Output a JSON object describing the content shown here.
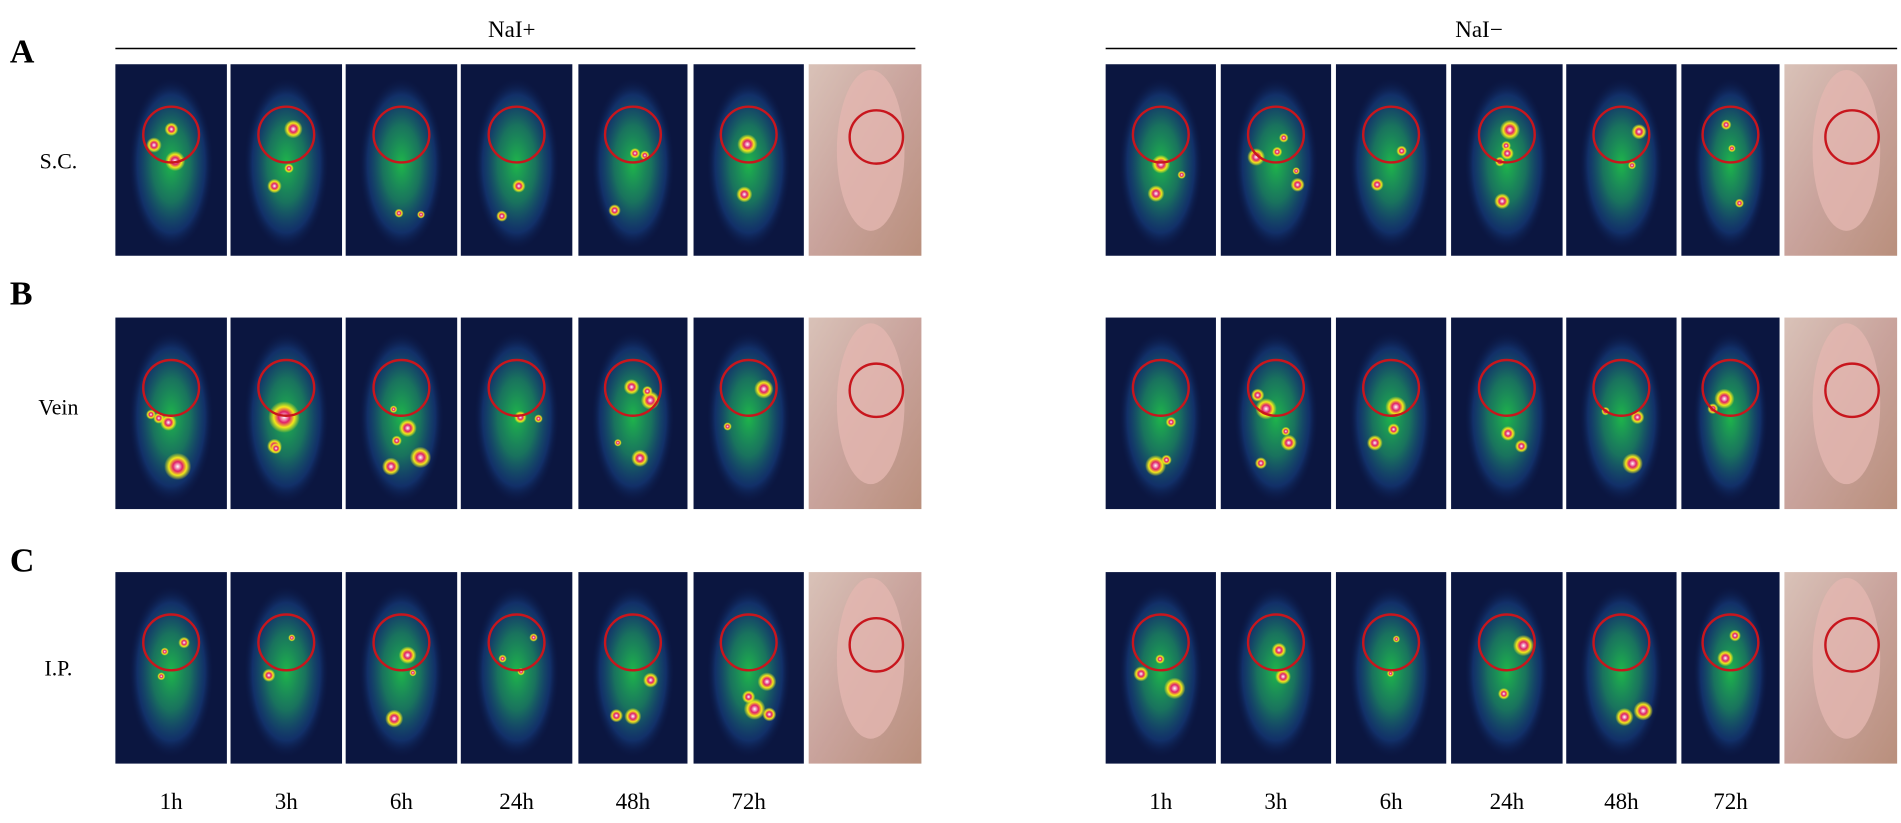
{
  "groups": [
    {
      "title": "NaI+",
      "time_labels": [
        "1h",
        "3h",
        "6h",
        "24h",
        "48h",
        "72h"
      ]
    },
    {
      "title": "NaI−",
      "time_labels": [
        "1h",
        "3h",
        "6h",
        "24h",
        "48h",
        "72h"
      ]
    }
  ],
  "rows": [
    {
      "letter": "A",
      "label": "S.C."
    },
    {
      "letter": "B",
      "label": "Vein"
    },
    {
      "letter": "C",
      "label": "I.P."
    }
  ]
}
